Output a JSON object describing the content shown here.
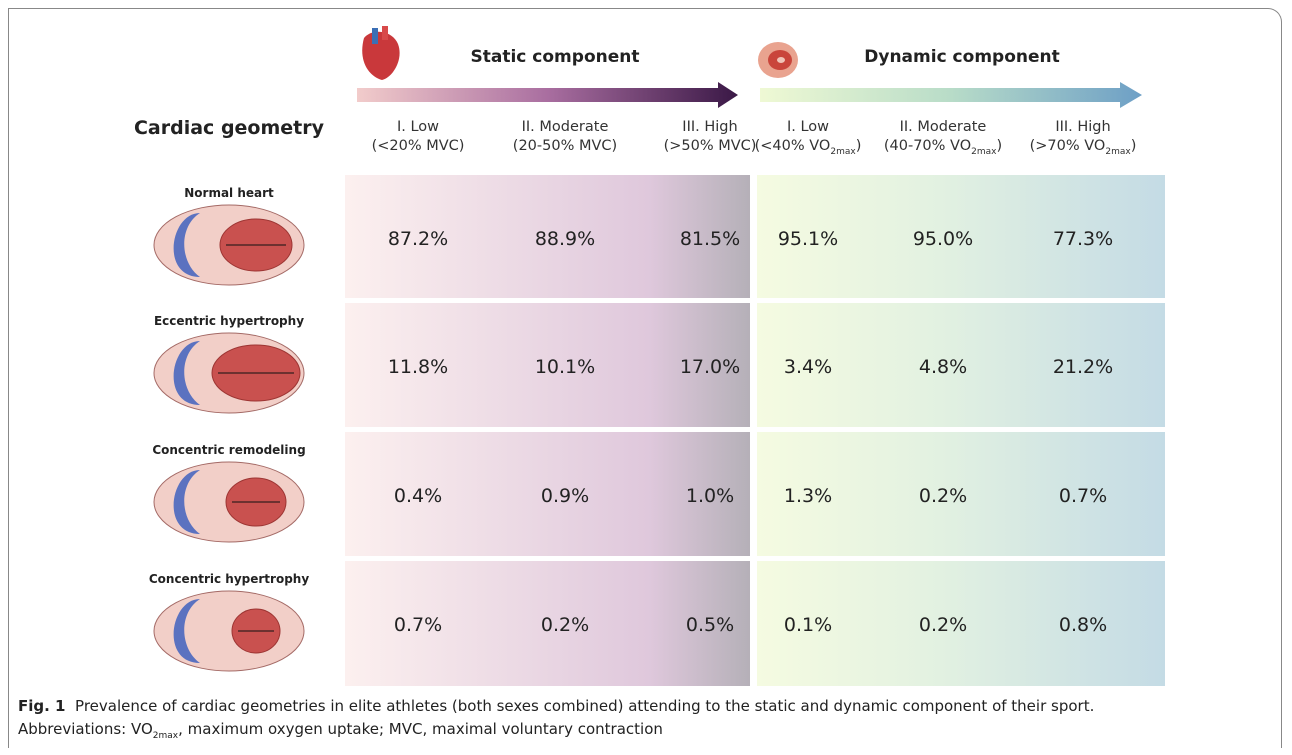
{
  "header": {
    "row_label_title": "Cardiac geometry",
    "static_title": "Static component",
    "dynamic_title": "Dynamic component"
  },
  "columns": [
    {
      "title": "I. Low",
      "range": [
        "(<20% MVC)"
      ]
    },
    {
      "title": "II. Moderate",
      "range": [
        "(20-50% MVC)"
      ]
    },
    {
      "title": "III. High",
      "range": [
        "(>50% MVC)"
      ]
    },
    {
      "title": "I. Low",
      "range": [
        "(<40% VO",
        "2max",
        ")"
      ]
    },
    {
      "title": "II. Moderate",
      "range": [
        "(40-70% VO",
        "2max",
        ")"
      ]
    },
    {
      "title": "III. High",
      "range": [
        "(>70% VO",
        "2max",
        ")"
      ]
    }
  ],
  "rows": [
    {
      "label": "Normal heart",
      "values": [
        "87.2%",
        "88.9%",
        "81.5%",
        "95.1%",
        "95.0%",
        "77.3%"
      ]
    },
    {
      "label": "Eccentric hypertrophy",
      "values": [
        "11.8%",
        "10.1%",
        "17.0%",
        "3.4%",
        "4.8%",
        "21.2%"
      ]
    },
    {
      "label": "Concentric remodeling",
      "values": [
        "0.4%",
        "0.9%",
        "1.0%",
        "1.3%",
        "0.2%",
        "0.7%"
      ]
    },
    {
      "label": "Concentric hypertrophy",
      "values": [
        "0.7%",
        "0.2%",
        "0.5%",
        "0.1%",
        "0.2%",
        "0.8%"
      ]
    }
  ],
  "caption": {
    "label": "Fig. 1",
    "text": "Prevalence of cardiac geometries in elite athletes (both sexes combined) attending to the static and dynamic component of their sport.",
    "abbreviations": [
      "Abbreviations: VO",
      "2max",
      ", maximum oxygen uptake; MVC, maximal voluntary contraction"
    ]
  }
}
